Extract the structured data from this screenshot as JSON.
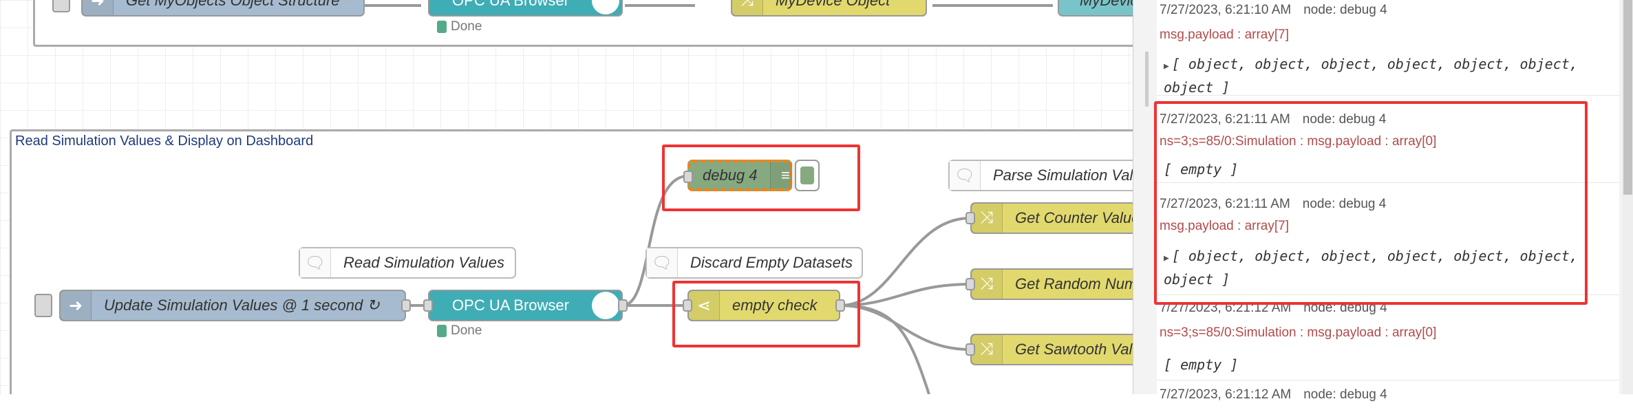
{
  "flow": {
    "top_group": {
      "nodes": [
        {
          "label": "Get MyObjects Object Structure *",
          "type": "inject",
          "color": "#a6bbcf"
        },
        {
          "label": "OPC UA Browser",
          "type": "opcua",
          "color": "#3fadb5",
          "status": "Done"
        },
        {
          "label": "MyDevice Object",
          "type": "change",
          "color": "#e2d96e"
        },
        {
          "label": "MyDevic",
          "type": "node",
          "color": "#79c4c8"
        }
      ]
    },
    "sim_group": {
      "title": "Read Simulation Values & Display on Dashboard",
      "debug": {
        "label": "debug 4",
        "color": "#87a980"
      },
      "comments": {
        "read": "Read Simulation Values",
        "discard": "Discard Empty Datasets",
        "parse": "Parse Simulation Valu"
      },
      "inject": {
        "label": "Update Simulation Values @ 1 second ↻",
        "color": "#a6bbcf"
      },
      "opcua": {
        "label": "OPC UA Browser",
        "color": "#3fadb5",
        "status": "Done"
      },
      "switch": {
        "label": "empty check",
        "color": "#e2d96e"
      },
      "changes": [
        "Get Counter Value",
        "Get Random Num",
        "Get Sawtooth Valu"
      ]
    },
    "highlight_color": "#e53935"
  },
  "debug_sidebar": {
    "messages": [
      {
        "time": "7/27/2023, 6:21:10 AM",
        "node": "node: debug 4",
        "path": "msg.payload : array[7]",
        "value": "[ object, object, object, object, object, object, object ]",
        "expandable": true
      },
      {
        "time": "7/27/2023, 6:21:11 AM",
        "node": "node: debug 4",
        "path": "ns=3;s=85/0:Simulation : msg.payload : array[0]",
        "value": "[ empty ]",
        "expandable": false
      },
      {
        "time": "7/27/2023, 6:21:11 AM",
        "node": "node: debug 4",
        "path": "msg.payload : array[7]",
        "value": "[ object, object, object, object, object, object, object ]",
        "expandable": true
      },
      {
        "time": "7/27/2023, 6:21:12 AM",
        "node": "node: debug 4",
        "path": "ns=3;s=85/0:Simulation : msg.payload : array[0]",
        "value": "[ empty ]",
        "expandable": false
      },
      {
        "time": "7/27/2023, 6:21:12 AM",
        "node": "node: debug 4"
      }
    ]
  }
}
